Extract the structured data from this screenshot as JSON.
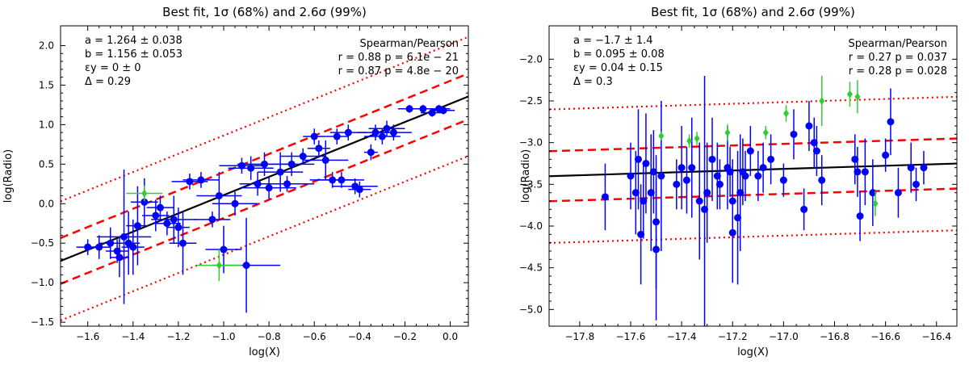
{
  "chart_data": [
    {
      "type": "scatter",
      "title": "Best fit, 1σ (68%) and 2.6σ (99%)",
      "xlabel": "log(X)",
      "ylabel": "log(Radio)",
      "xlim": [
        -1.72,
        0.08
      ],
      "ylim": [
        -1.55,
        2.25
      ],
      "xticks": [
        -1.6,
        -1.4,
        -1.2,
        -1.0,
        -0.8,
        -0.6,
        -0.4,
        -0.2,
        0.0
      ],
      "xtick_labels": [
        "−1.6",
        "−1.4",
        "−1.2",
        "−1.0",
        "−0.8",
        "−0.6",
        "−0.4",
        "−0.2",
        "0.0"
      ],
      "yticks": [
        -1.5,
        -1.0,
        -0.5,
        0.0,
        0.5,
        1.0,
        1.5,
        2.0
      ],
      "ytick_labels": [
        "−1.5",
        "−1.0",
        "−0.5",
        "0.0",
        "0.5",
        "1.0",
        "1.5",
        "2.0"
      ],
      "fit": {
        "slope": 1.156,
        "intercept": 1.264,
        "band_1sigma": 0.29,
        "band_99": 0.754
      },
      "stats": [
        "a = 1.264 ± 0.038",
        "b = 1.156 ± 0.053",
        "εy = 0 ± 0",
        "Δ = 0.29"
      ],
      "corr": [
        "Spearman/Pearson",
        "r = 0.88 p = 6.1e − 21",
        "r = 0.87 p = 4.8e − 20"
      ],
      "colors": {
        "points": "#0000ff",
        "special": "#33cc33",
        "fit": "#000000",
        "bands": "#ff0000"
      },
      "series": [
        {
          "name": "sources",
          "color": "#0000ff",
          "marker": "circle",
          "points": [
            {
              "x": -1.6,
              "y": -0.55,
              "xerr": 0.05,
              "yerr": 0.1
            },
            {
              "x": -1.55,
              "y": -0.55,
              "xerr": 0.05,
              "yerr": 0.15
            },
            {
              "x": -1.5,
              "y": -0.5,
              "xerr": 0.05,
              "yerr": 0.2
            },
            {
              "x": -1.47,
              "y": -0.6,
              "xerr": 0.05,
              "yerr": 0.15
            },
            {
              "x": -1.46,
              "y": -0.68,
              "xerr": 0.04,
              "yerr": 0.25
            },
            {
              "x": -1.44,
              "y": -0.42,
              "xerr": 0.12,
              "yerr": 0.85
            },
            {
              "x": -1.42,
              "y": -0.5,
              "xerr": 0.05,
              "yerr": 0.4
            },
            {
              "x": -1.4,
              "y": -0.55,
              "xerr": 0.05,
              "yerr": 0.35
            },
            {
              "x": -1.38,
              "y": -0.28,
              "xerr": 0.05,
              "yerr": 0.5
            },
            {
              "x": -1.35,
              "y": 0.02,
              "xerr": 0.06,
              "yerr": 0.3
            },
            {
              "x": -1.3,
              "y": -0.15,
              "xerr": 0.06,
              "yerr": 0.2
            },
            {
              "x": -1.28,
              "y": -0.05,
              "xerr": 0.06,
              "yerr": 0.15
            },
            {
              "x": -1.25,
              "y": -0.25,
              "xerr": 0.06,
              "yerr": 0.15
            },
            {
              "x": -1.22,
              "y": -0.2,
              "xerr": 0.1,
              "yerr": 0.3
            },
            {
              "x": -1.2,
              "y": -0.3,
              "xerr": 0.05,
              "yerr": 0.25
            },
            {
              "x": -1.18,
              "y": -0.5,
              "xerr": 0.06,
              "yerr": 0.4
            },
            {
              "x": -1.15,
              "y": 0.28,
              "xerr": 0.08,
              "yerr": 0.1
            },
            {
              "x": -1.1,
              "y": 0.3,
              "xerr": 0.08,
              "yerr": 0.1
            },
            {
              "x": -1.05,
              "y": -0.2,
              "xerr": 0.08,
              "yerr": 0.1
            },
            {
              "x": -1.02,
              "y": 0.1,
              "xerr": 0.1,
              "yerr": 0.3
            },
            {
              "x": -1.0,
              "y": -0.58,
              "xerr": 0.08,
              "yerr": 0.3
            },
            {
              "x": -0.95,
              "y": 0.0,
              "xerr": 0.1,
              "yerr": 0.15
            },
            {
              "x": -0.92,
              "y": 0.48,
              "xerr": 0.1,
              "yerr": 0.1
            },
            {
              "x": -0.9,
              "y": -0.78,
              "xerr": 0.15,
              "yerr": 0.6
            },
            {
              "x": -0.88,
              "y": 0.45,
              "xerr": 0.1,
              "yerr": 0.15
            },
            {
              "x": -0.85,
              "y": 0.25,
              "xerr": 0.08,
              "yerr": 0.15
            },
            {
              "x": -0.82,
              "y": 0.5,
              "xerr": 0.12,
              "yerr": 0.15
            },
            {
              "x": -0.8,
              "y": 0.2,
              "xerr": 0.12,
              "yerr": 0.15
            },
            {
              "x": -0.75,
              "y": 0.4,
              "xerr": 0.1,
              "yerr": 0.25
            },
            {
              "x": -0.72,
              "y": 0.25,
              "xerr": 0.12,
              "yerr": 0.1
            },
            {
              "x": -0.7,
              "y": 0.5,
              "xerr": 0.1,
              "yerr": 0.15
            },
            {
              "x": -0.65,
              "y": 0.6,
              "xerr": 0.1,
              "yerr": 0.1
            },
            {
              "x": -0.6,
              "y": 0.85,
              "xerr": 0.05,
              "yerr": 0.1
            },
            {
              "x": -0.58,
              "y": 0.7,
              "xerr": 0.05,
              "yerr": 0.1
            },
            {
              "x": -0.55,
              "y": 0.55,
              "xerr": 0.1,
              "yerr": 0.25
            },
            {
              "x": -0.52,
              "y": 0.3,
              "xerr": 0.1,
              "yerr": 0.1
            },
            {
              "x": -0.5,
              "y": 0.85,
              "xerr": 0.05,
              "yerr": 0.1
            },
            {
              "x": -0.48,
              "y": 0.3,
              "xerr": 0.1,
              "yerr": 0.1
            },
            {
              "x": -0.45,
              "y": 0.9,
              "xerr": 0.08,
              "yerr": 0.1
            },
            {
              "x": -0.42,
              "y": 0.22,
              "xerr": 0.1,
              "yerr": 0.1
            },
            {
              "x": -0.4,
              "y": 0.18,
              "xerr": 0.05,
              "yerr": 0.1
            },
            {
              "x": -0.35,
              "y": 0.65,
              "xerr": 0.03,
              "yerr": 0.1
            },
            {
              "x": -0.33,
              "y": 0.9,
              "xerr": 0.08,
              "yerr": 0.1
            },
            {
              "x": -0.3,
              "y": 0.85,
              "xerr": 0.08,
              "yerr": 0.1
            },
            {
              "x": -0.28,
              "y": 0.95,
              "xerr": 0.08,
              "yerr": 0.1
            },
            {
              "x": -0.25,
              "y": 0.9,
              "xerr": 0.08,
              "yerr": 0.1
            },
            {
              "x": -0.18,
              "y": 1.2,
              "xerr": 0.05,
              "yerr": 0.05
            },
            {
              "x": -0.12,
              "y": 1.2,
              "xerr": 0.05,
              "yerr": 0.05
            },
            {
              "x": -0.08,
              "y": 1.15,
              "xerr": 0.05,
              "yerr": 0.05
            },
            {
              "x": -0.05,
              "y": 1.2,
              "xerr": 0.05,
              "yerr": 0.05
            },
            {
              "x": -0.03,
              "y": 1.18,
              "xerr": 0.05,
              "yerr": 0.05
            }
          ]
        },
        {
          "name": "special",
          "color": "#33cc33",
          "marker": "diamond",
          "points": [
            {
              "x": -1.35,
              "y": 0.13,
              "xerr": 0.08,
              "yerr": 0.1
            },
            {
              "x": -1.02,
              "y": -0.78,
              "xerr": 0.1,
              "yerr": 0.2
            }
          ]
        }
      ]
    },
    {
      "type": "scatter",
      "title": "Best fit, 1σ (68%) and 2.6σ (99%)",
      "xlabel": "log(X)",
      "ylabel": "log(Radio)",
      "xlim": [
        -17.92,
        -16.32
      ],
      "ylim": [
        -5.2,
        -1.6
      ],
      "xticks": [
        -17.8,
        -17.6,
        -17.4,
        -17.2,
        -17.0,
        -16.8,
        -16.6,
        -16.4
      ],
      "xtick_labels": [
        "−17.8",
        "−17.6",
        "−17.4",
        "−17.2",
        "−17.0",
        "−16.8",
        "−16.6",
        "−16.4"
      ],
      "yticks": [
        -5.0,
        -4.5,
        -4.0,
        -3.5,
        -3.0,
        -2.5,
        -2.0
      ],
      "ytick_labels": [
        "−5.0",
        "−4.5",
        "−4.0",
        "−3.5",
        "−3.0",
        "−2.5",
        "−2.0"
      ],
      "fit": {
        "slope": 0.095,
        "intercept": -1.7,
        "band_1sigma": 0.3,
        "band_99": 0.8
      },
      "stats": [
        "a = −1.7 ± 1.4",
        "b = 0.095 ± 0.08",
        "εy = 0.04 ± 0.15",
        "Δ = 0.3"
      ],
      "corr": [
        "Spearman/Pearson",
        "r = 0.27 p = 0.037",
        "r = 0.28 p = 0.028"
      ],
      "colors": {
        "points": "#0000ff",
        "special": "#33cc33",
        "fit": "#000000",
        "bands": "#ff0000"
      },
      "series": [
        {
          "name": "sources",
          "color": "#0000ff",
          "marker": "circle",
          "points": [
            {
              "x": -17.7,
              "y": -3.65,
              "yerr": 0.4
            },
            {
              "x": -17.6,
              "y": -3.4,
              "yerr": 0.4
            },
            {
              "x": -17.58,
              "y": -3.6,
              "yerr": 0.5
            },
            {
              "x": -17.57,
              "y": -3.2,
              "yerr": 0.6
            },
            {
              "x": -17.56,
              "y": -4.1,
              "yerr": 0.6
            },
            {
              "x": -17.55,
              "y": -3.7,
              "yerr": 0.45
            },
            {
              "x": -17.54,
              "y": -3.25,
              "yerr": 0.6
            },
            {
              "x": -17.52,
              "y": -3.6,
              "yerr": 0.7
            },
            {
              "x": -17.51,
              "y": -3.35,
              "yerr": 0.5
            },
            {
              "x": -17.5,
              "y": -3.95,
              "yerr": 0.8
            },
            {
              "x": -17.5,
              "y": -4.28,
              "yerr": 0.85
            },
            {
              "x": -17.48,
              "y": -3.4,
              "yerr": 0.9
            },
            {
              "x": -17.42,
              "y": -3.5,
              "yerr": 0.3
            },
            {
              "x": -17.4,
              "y": -3.3,
              "yerr": 0.5
            },
            {
              "x": -17.38,
              "y": -3.45,
              "yerr": 0.4
            },
            {
              "x": -17.36,
              "y": -3.3,
              "yerr": 0.6
            },
            {
              "x": -17.33,
              "y": -3.7,
              "yerr": 0.7
            },
            {
              "x": -17.31,
              "y": -3.8,
              "yerr": 1.6
            },
            {
              "x": -17.3,
              "y": -3.6,
              "yerr": 0.6
            },
            {
              "x": -17.28,
              "y": -3.2,
              "yerr": 0.5
            },
            {
              "x": -17.26,
              "y": -3.4,
              "yerr": 0.4
            },
            {
              "x": -17.25,
              "y": -3.5,
              "yerr": 0.3
            },
            {
              "x": -17.22,
              "y": -3.3,
              "yerr": 0.5
            },
            {
              "x": -17.21,
              "y": -3.35,
              "yerr": 0.3
            },
            {
              "x": -17.2,
              "y": -3.7,
              "yerr": 0.5
            },
            {
              "x": -17.2,
              "y": -4.08,
              "yerr": 0.6
            },
            {
              "x": -17.18,
              "y": -3.9,
              "yerr": 0.8
            },
            {
              "x": -17.17,
              "y": -3.6,
              "yerr": 0.7
            },
            {
              "x": -17.16,
              "y": -3.35,
              "yerr": 0.4
            },
            {
              "x": -17.15,
              "y": -3.4,
              "yerr": 0.3
            },
            {
              "x": -17.13,
              "y": -3.1,
              "yerr": 0.3
            },
            {
              "x": -17.1,
              "y": -3.4,
              "yerr": 0.3
            },
            {
              "x": -17.08,
              "y": -3.3,
              "yerr": 0.3
            },
            {
              "x": -17.05,
              "y": -3.2,
              "yerr": 0.3
            },
            {
              "x": -17.0,
              "y": -3.45,
              "yerr": 0.2
            },
            {
              "x": -16.96,
              "y": -2.9,
              "yerr": 0.3
            },
            {
              "x": -16.92,
              "y": -3.8,
              "yerr": 0.25
            },
            {
              "x": -16.9,
              "y": -2.8,
              "yerr": 0.3
            },
            {
              "x": -16.88,
              "y": -3.0,
              "yerr": 0.3
            },
            {
              "x": -16.87,
              "y": -3.1,
              "yerr": 0.3
            },
            {
              "x": -16.85,
              "y": -3.45,
              "yerr": 0.3
            },
            {
              "x": -16.72,
              "y": -3.2,
              "yerr": 0.3
            },
            {
              "x": -16.71,
              "y": -3.35,
              "yerr": 0.3
            },
            {
              "x": -16.7,
              "y": -3.88,
              "yerr": 0.3
            },
            {
              "x": -16.68,
              "y": -3.35,
              "yerr": 0.4
            },
            {
              "x": -16.65,
              "y": -3.6,
              "yerr": 0.4
            },
            {
              "x": -16.6,
              "y": -3.15,
              "yerr": 0.2
            },
            {
              "x": -16.58,
              "y": -2.75,
              "yerr": 0.4
            },
            {
              "x": -16.55,
              "y": -3.6,
              "yerr": 0.3
            },
            {
              "x": -16.5,
              "y": -3.3,
              "yerr": 0.3
            },
            {
              "x": -16.48,
              "y": -3.5,
              "yerr": 0.2
            },
            {
              "x": -16.45,
              "y": -3.3,
              "yerr": 0.2
            }
          ]
        },
        {
          "name": "special",
          "color": "#33cc33",
          "marker": "diamond",
          "points": [
            {
              "x": -17.48,
              "y": -2.92,
              "yerr": 0.05
            },
            {
              "x": -17.37,
              "y": -2.98,
              "yerr": 0.08
            },
            {
              "x": -17.34,
              "y": -2.95,
              "yerr": 0.08
            },
            {
              "x": -17.22,
              "y": -2.88,
              "yerr": 0.1
            },
            {
              "x": -17.07,
              "y": -2.88,
              "yerr": 0.08
            },
            {
              "x": -16.99,
              "y": -2.65,
              "yerr": 0.1
            },
            {
              "x": -16.85,
              "y": -2.5,
              "yerr": 0.3
            },
            {
              "x": -16.74,
              "y": -2.42,
              "yerr": 0.15
            },
            {
              "x": -16.71,
              "y": -2.45,
              "yerr": 0.2
            },
            {
              "x": -16.64,
              "y": -3.73,
              "yerr": 0.15
            }
          ]
        }
      ]
    }
  ]
}
